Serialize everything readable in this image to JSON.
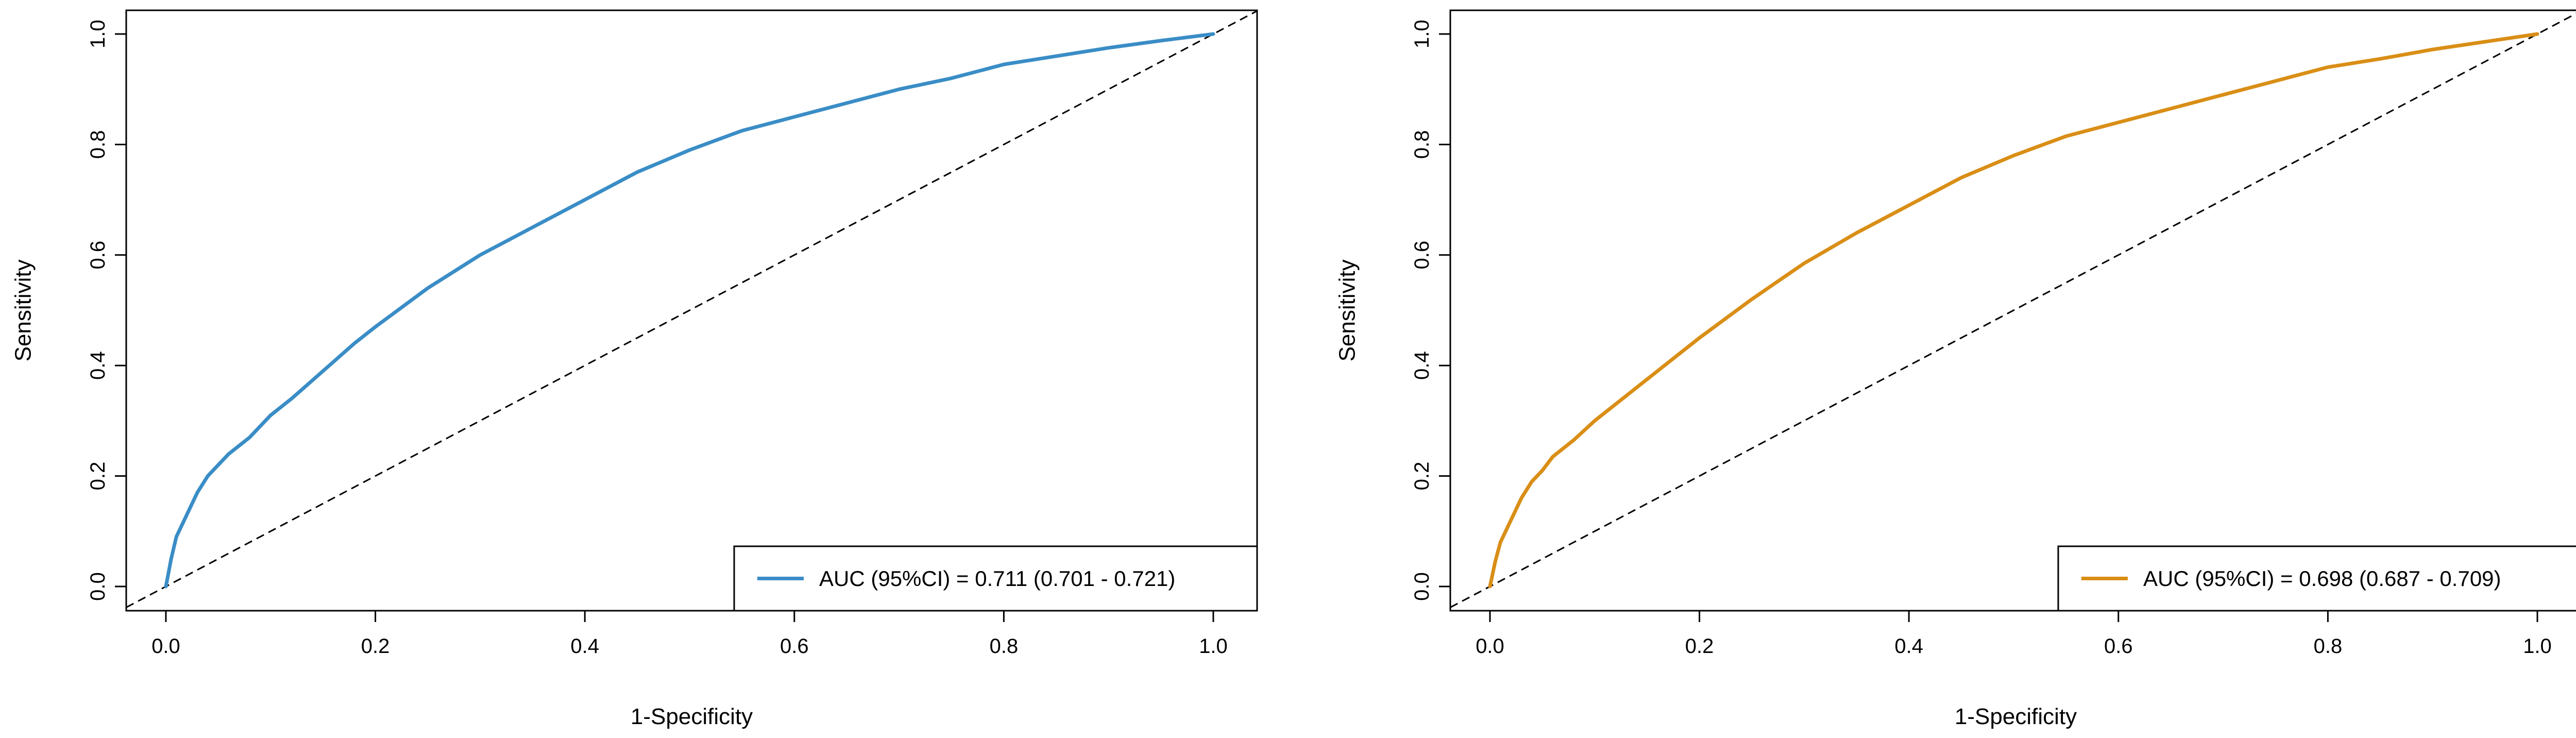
{
  "chart_data": [
    {
      "type": "line",
      "xlabel": "1-Specificity",
      "ylabel": "Sensitivity",
      "xlim": [
        0.0,
        1.0
      ],
      "ylim": [
        0.0,
        1.0
      ],
      "x_ticks": [
        "0.0",
        "0.2",
        "0.4",
        "0.6",
        "0.8",
        "1.0"
      ],
      "y_ticks": [
        "0.0",
        "0.2",
        "0.4",
        "0.6",
        "0.8",
        "1.0"
      ],
      "grid": false,
      "legend_position": "bottom-right",
      "reference_line": {
        "x": [
          0,
          1
        ],
        "y": [
          0,
          1
        ],
        "style": "dashed",
        "color": "#000000"
      },
      "series": [
        {
          "name": "AUC (95%CI) = 0.711 (0.701 - 0.721)",
          "color": "#3A8DC6",
          "x": [
            0.0,
            0.005,
            0.01,
            0.02,
            0.03,
            0.04,
            0.05,
            0.06,
            0.08,
            0.1,
            0.12,
            0.15,
            0.18,
            0.2,
            0.25,
            0.3,
            0.35,
            0.4,
            0.45,
            0.5,
            0.55,
            0.6,
            0.65,
            0.7,
            0.75,
            0.8,
            0.85,
            0.9,
            0.95,
            1.0
          ],
          "y": [
            0.0,
            0.05,
            0.09,
            0.13,
            0.17,
            0.2,
            0.22,
            0.24,
            0.27,
            0.31,
            0.34,
            0.39,
            0.44,
            0.47,
            0.54,
            0.6,
            0.65,
            0.7,
            0.75,
            0.79,
            0.825,
            0.85,
            0.875,
            0.9,
            0.92,
            0.945,
            0.96,
            0.975,
            0.988,
            1.0
          ]
        }
      ]
    },
    {
      "type": "line",
      "xlabel": "1-Specificity",
      "ylabel": "Sensitivity",
      "xlim": [
        0.0,
        1.0
      ],
      "ylim": [
        0.0,
        1.0
      ],
      "x_ticks": [
        "0.0",
        "0.2",
        "0.4",
        "0.6",
        "0.8",
        "1.0"
      ],
      "y_ticks": [
        "0.0",
        "0.2",
        "0.4",
        "0.6",
        "0.8",
        "1.0"
      ],
      "grid": false,
      "legend_position": "bottom-right",
      "reference_line": {
        "x": [
          0,
          1
        ],
        "y": [
          0,
          1
        ],
        "style": "dashed",
        "color": "#000000"
      },
      "series": [
        {
          "name": "AUC (95%CI) = 0.698 (0.687 - 0.709)",
          "color": "#D98E16",
          "x": [
            0.0,
            0.005,
            0.01,
            0.02,
            0.03,
            0.04,
            0.05,
            0.06,
            0.08,
            0.1,
            0.12,
            0.15,
            0.18,
            0.2,
            0.25,
            0.3,
            0.35,
            0.4,
            0.45,
            0.5,
            0.55,
            0.6,
            0.65,
            0.7,
            0.75,
            0.8,
            0.85,
            0.9,
            0.95,
            1.0
          ],
          "y": [
            0.0,
            0.045,
            0.08,
            0.12,
            0.16,
            0.19,
            0.21,
            0.235,
            0.265,
            0.3,
            0.33,
            0.375,
            0.42,
            0.45,
            0.52,
            0.585,
            0.64,
            0.69,
            0.74,
            0.78,
            0.815,
            0.84,
            0.865,
            0.89,
            0.915,
            0.94,
            0.955,
            0.972,
            0.986,
            1.0
          ]
        }
      ]
    }
  ]
}
